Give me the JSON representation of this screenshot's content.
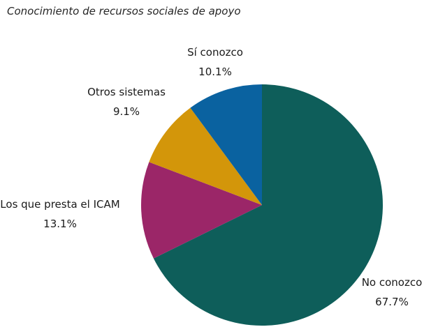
{
  "chart_data": {
    "type": "pie",
    "title": "Conocimiento de recursos sociales de apoyo",
    "slices": [
      {
        "label": "No conozco",
        "value": 67.7,
        "value_label": "67.7%",
        "color": "#0e5e5a"
      },
      {
        "label": "Los que presta el ICAM",
        "value": 13.1,
        "value_label": "13.1%",
        "color": "#9b2668"
      },
      {
        "label": "Otros sistemas",
        "value": 9.1,
        "value_label": "9.1%",
        "color": "#d3960a"
      },
      {
        "label": "Sí conozco",
        "value": 10.1,
        "value_label": "10.1%",
        "color": "#0a62a0"
      }
    ],
    "start_angle_deg": 0,
    "direction": "clockwise"
  }
}
